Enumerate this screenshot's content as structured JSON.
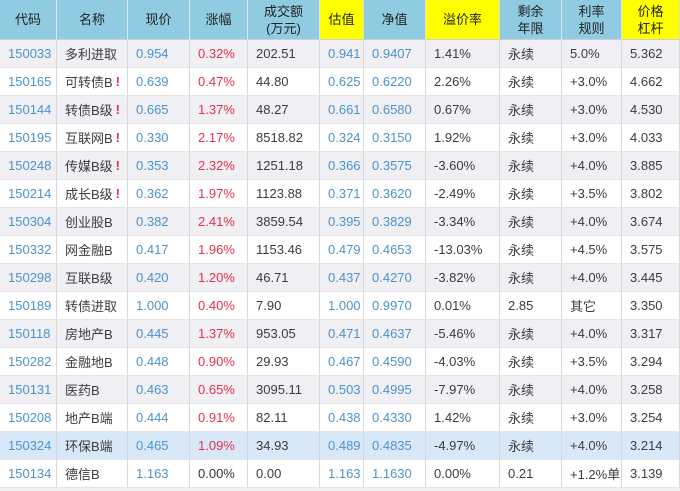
{
  "theme": {
    "header_blue": "#8fcbe1",
    "header_yellow": "#ffff00",
    "row_stripe": "#efeff4",
    "row_selected": "#d9e8f8",
    "value_blue": "#4a94cc",
    "change_red": "#e5304c",
    "text_dark": "#3c3c3c"
  },
  "table": {
    "columns": [
      {
        "key": "code",
        "label": "代码",
        "highlight": false,
        "style": "blue"
      },
      {
        "key": "name",
        "label": "名称",
        "highlight": false,
        "style": "dark"
      },
      {
        "key": "price",
        "label": "现价",
        "highlight": false,
        "style": "blue"
      },
      {
        "key": "change",
        "label": "涨幅",
        "highlight": false,
        "style": "red"
      },
      {
        "key": "turnover",
        "label": "成交额\n(万元)",
        "highlight": false,
        "style": "dark"
      },
      {
        "key": "est",
        "label": "估值",
        "highlight": true,
        "style": "blue"
      },
      {
        "key": "nav",
        "label": "净值",
        "highlight": false,
        "style": "blue"
      },
      {
        "key": "premium",
        "label": "溢价率",
        "highlight": true,
        "style": "dark"
      },
      {
        "key": "remain",
        "label": "剩余\n年限",
        "highlight": false,
        "style": "dark"
      },
      {
        "key": "rule",
        "label": "利率\n规则",
        "highlight": false,
        "style": "dark"
      },
      {
        "key": "lever",
        "label": "价格\n杠杆",
        "highlight": true,
        "style": "dark"
      }
    ],
    "rows": [
      {
        "code": "150033",
        "name": "多利进取",
        "alert_mark": "",
        "price": "0.954",
        "change": "0.32%",
        "change_up": true,
        "turnover": "202.51",
        "est": "0.941",
        "nav": "0.9407",
        "premium": "1.41%",
        "remain": "永续",
        "rule": "5.0%",
        "lever": "5.362",
        "selected": false
      },
      {
        "code": "150165",
        "name": "可转债B",
        "alert_mark": "!",
        "price": "0.639",
        "change": "0.47%",
        "change_up": true,
        "turnover": "44.80",
        "est": "0.625",
        "nav": "0.6220",
        "premium": "2.26%",
        "remain": "永续",
        "rule": "+3.0%",
        "lever": "4.662",
        "selected": false
      },
      {
        "code": "150144",
        "name": "转债B级",
        "alert_mark": "!",
        "price": "0.665",
        "change": "1.37%",
        "change_up": true,
        "turnover": "48.27",
        "est": "0.661",
        "nav": "0.6580",
        "premium": "0.67%",
        "remain": "永续",
        "rule": "+3.0%",
        "lever": "4.530",
        "selected": false
      },
      {
        "code": "150195",
        "name": "互联网B",
        "alert_mark": "!",
        "price": "0.330",
        "change": "2.17%",
        "change_up": true,
        "turnover": "8518.82",
        "est": "0.324",
        "nav": "0.3150",
        "premium": "1.92%",
        "remain": "永续",
        "rule": "+3.0%",
        "lever": "4.033",
        "selected": false
      },
      {
        "code": "150248",
        "name": "传媒B级",
        "alert_mark": "!",
        "price": "0.353",
        "change": "2.32%",
        "change_up": true,
        "turnover": "1251.18",
        "est": "0.366",
        "nav": "0.3575",
        "premium": "-3.60%",
        "remain": "永续",
        "rule": "+4.0%",
        "lever": "3.885",
        "selected": false
      },
      {
        "code": "150214",
        "name": "成长B级",
        "alert_mark": "!",
        "price": "0.362",
        "change": "1.97%",
        "change_up": true,
        "turnover": "1123.88",
        "est": "0.371",
        "nav": "0.3620",
        "premium": "-2.49%",
        "remain": "永续",
        "rule": "+3.5%",
        "lever": "3.802",
        "selected": false
      },
      {
        "code": "150304",
        "name": "创业股B",
        "alert_mark": "",
        "price": "0.382",
        "change": "2.41%",
        "change_up": true,
        "turnover": "3859.54",
        "est": "0.395",
        "nav": "0.3829",
        "premium": "-3.34%",
        "remain": "永续",
        "rule": "+4.0%",
        "lever": "3.674",
        "selected": false
      },
      {
        "code": "150332",
        "name": "网金融B",
        "alert_mark": "",
        "price": "0.417",
        "change": "1.96%",
        "change_up": true,
        "turnover": "1153.46",
        "est": "0.479",
        "nav": "0.4653",
        "premium": "-13.03%",
        "remain": "永续",
        "rule": "+4.5%",
        "lever": "3.575",
        "selected": false
      },
      {
        "code": "150298",
        "name": "互联B级",
        "alert_mark": "",
        "price": "0.420",
        "change": "1.20%",
        "change_up": true,
        "turnover": "46.71",
        "est": "0.437",
        "nav": "0.4270",
        "premium": "-3.82%",
        "remain": "永续",
        "rule": "+4.0%",
        "lever": "3.445",
        "selected": false
      },
      {
        "code": "150189",
        "name": "转债进取",
        "alert_mark": "",
        "price": "1.000",
        "change": "0.40%",
        "change_up": true,
        "turnover": "7.90",
        "est": "1.000",
        "nav": "0.9970",
        "premium": "0.01%",
        "remain": "2.85",
        "rule": "其它",
        "lever": "3.350",
        "selected": false
      },
      {
        "code": "150118",
        "name": "房地产B",
        "alert_mark": "",
        "price": "0.445",
        "change": "1.37%",
        "change_up": true,
        "turnover": "953.05",
        "est": "0.471",
        "nav": "0.4637",
        "premium": "-5.46%",
        "remain": "永续",
        "rule": "+4.0%",
        "lever": "3.317",
        "selected": false
      },
      {
        "code": "150282",
        "name": "金融地B",
        "alert_mark": "",
        "price": "0.448",
        "change": "0.90%",
        "change_up": true,
        "turnover": "29.93",
        "est": "0.467",
        "nav": "0.4590",
        "premium": "-4.03%",
        "remain": "永续",
        "rule": "+3.5%",
        "lever": "3.294",
        "selected": false
      },
      {
        "code": "150131",
        "name": "医药B",
        "alert_mark": "",
        "price": "0.463",
        "change": "0.65%",
        "change_up": true,
        "turnover": "3095.11",
        "est": "0.503",
        "nav": "0.4995",
        "premium": "-7.97%",
        "remain": "永续",
        "rule": "+4.0%",
        "lever": "3.258",
        "selected": false
      },
      {
        "code": "150208",
        "name": "地产B端",
        "alert_mark": "",
        "price": "0.444",
        "change": "0.91%",
        "change_up": true,
        "turnover": "82.11",
        "est": "0.438",
        "nav": "0.4330",
        "premium": "1.42%",
        "remain": "永续",
        "rule": "+3.0%",
        "lever": "3.254",
        "selected": false
      },
      {
        "code": "150324",
        "name": "环保B端",
        "alert_mark": "",
        "price": "0.465",
        "change": "1.09%",
        "change_up": true,
        "turnover": "34.93",
        "est": "0.489",
        "nav": "0.4835",
        "premium": "-4.97%",
        "remain": "永续",
        "rule": "+4.0%",
        "lever": "3.214",
        "selected": true
      },
      {
        "code": "150134",
        "name": "德信B",
        "alert_mark": "",
        "price": "1.163",
        "change": "0.00%",
        "change_up": false,
        "turnover": "0.00",
        "est": "1.163",
        "nav": "1.1630",
        "premium": "0.00%",
        "remain": "0.21",
        "rule": "+1.2%单",
        "lever": "3.139",
        "selected": false
      }
    ]
  }
}
